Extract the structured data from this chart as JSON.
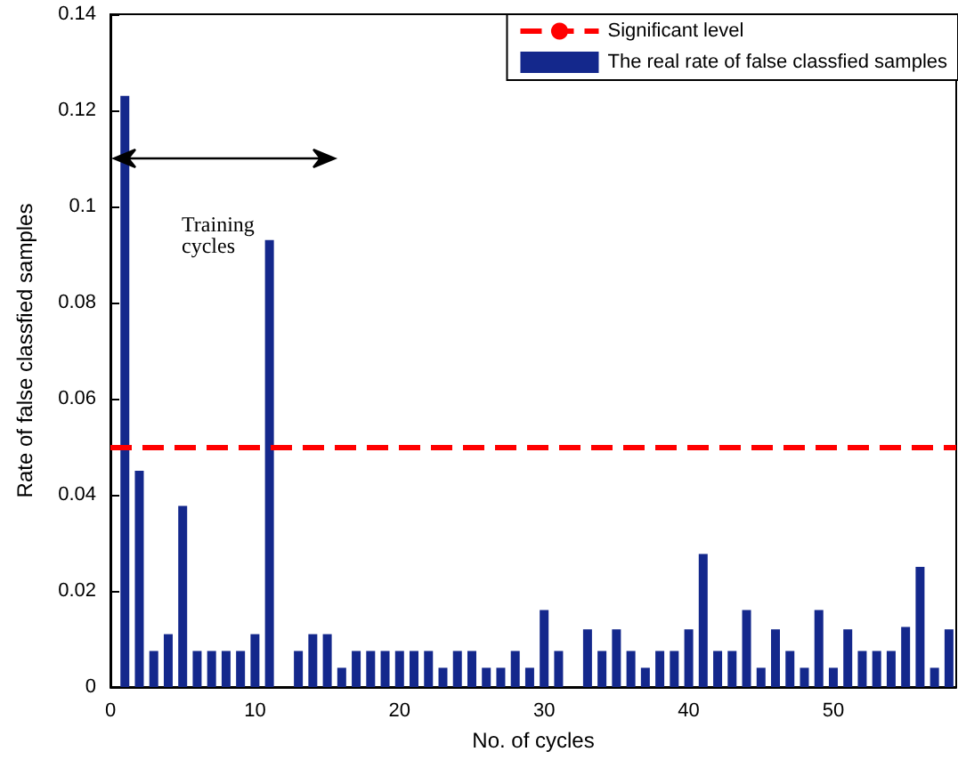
{
  "chart_data": {
    "type": "bar",
    "xlabel": "No. of cycles",
    "ylabel": "Rate of false classfied samples",
    "x": [
      1,
      2,
      3,
      4,
      5,
      6,
      7,
      8,
      9,
      10,
      11,
      12,
      13,
      14,
      15,
      16,
      17,
      18,
      19,
      20,
      21,
      22,
      23,
      24,
      25,
      26,
      27,
      28,
      29,
      30,
      31,
      32,
      33,
      34,
      35,
      36,
      37,
      38,
      39,
      40,
      41,
      42,
      43,
      44,
      45,
      46,
      47,
      48,
      49,
      50,
      51,
      52,
      53,
      54,
      55,
      56,
      57,
      58
    ],
    "series": [
      {
        "name": "The real rate of false classfied samples",
        "color": "#14288c",
        "values": [
          0.123,
          0.045,
          0.0075,
          0.011,
          0.0377,
          0.0075,
          0.0075,
          0.0075,
          0.0075,
          0.011,
          0.093,
          0,
          0.0075,
          0.011,
          0.011,
          0.004,
          0.0075,
          0.0075,
          0.0075,
          0.0075,
          0.0075,
          0.0075,
          0.004,
          0.0075,
          0.0075,
          0.004,
          0.004,
          0.0075,
          0.004,
          0.016,
          0.0075,
          0,
          0.012,
          0.0075,
          0.012,
          0.0075,
          0.004,
          0.0075,
          0.0075,
          0.012,
          0.0277,
          0.0075,
          0.0075,
          0.016,
          0.004,
          0.012,
          0.0075,
          0.004,
          0.016,
          0.004,
          0.012,
          0.0075,
          0.0075,
          0.0075,
          0.0125,
          0.025,
          0.004,
          0.012
        ]
      }
    ],
    "xlim": [
      0,
      58.5
    ],
    "xticks": [
      0,
      10,
      20,
      30,
      40,
      50
    ],
    "ylim": [
      0,
      0.14
    ],
    "yticks": [
      0,
      0.02,
      0.04,
      0.06,
      0.08,
      0.1,
      0.12,
      0.14
    ],
    "ref_lines": [
      {
        "axis": "y",
        "value": 0.05,
        "label": "Significant level",
        "color": "#ff0000",
        "line_style": "dashed"
      }
    ],
    "annotations": [
      "Training\ncycles"
    ],
    "legend": "top right",
    "grid": false
  }
}
